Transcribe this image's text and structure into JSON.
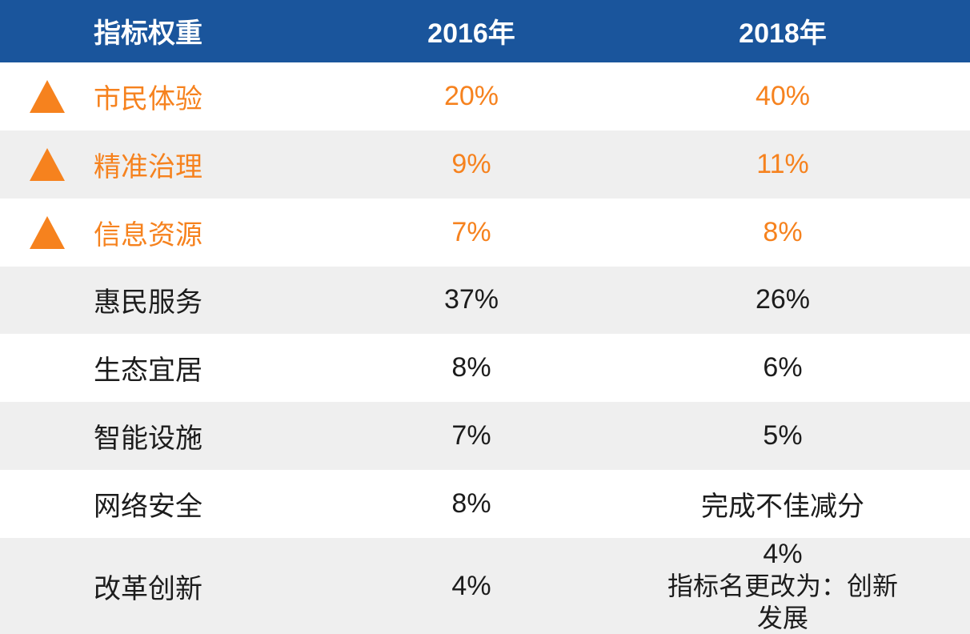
{
  "colors": {
    "header_bg": "#1a559c",
    "accent_orange": "#f6821e",
    "row_alt_bg": "#efefef",
    "row_bg": "#ffffff",
    "text_dark": "#1c1c1c",
    "header_text": "#ffffff"
  },
  "table": {
    "header": {
      "indicator": "指标权重",
      "y2016": "2016年",
      "y2018": "2018年"
    },
    "rows": [
      {
        "label": "市民体验",
        "v2016": "20%",
        "v2018": "40%",
        "trend": "up"
      },
      {
        "label": "精准治理",
        "v2016": "9%",
        "v2018": "11%",
        "trend": "up"
      },
      {
        "label": "信息资源",
        "v2016": "7%",
        "v2018": "8%",
        "trend": "up"
      },
      {
        "label": "惠民服务",
        "v2016": "37%",
        "v2018": "26%",
        "trend": "none"
      },
      {
        "label": "生态宜居",
        "v2016": "8%",
        "v2018": "6%",
        "trend": "none"
      },
      {
        "label": "智能设施",
        "v2016": "7%",
        "v2018": "5%",
        "trend": "none"
      },
      {
        "label": "网络安全",
        "v2016": "8%",
        "v2018": "完成不佳减分",
        "trend": "none"
      },
      {
        "label": "改革创新",
        "v2016": "4%",
        "v2018": "4%",
        "v2018_note": "指标名更改为：创新发展",
        "trend": "none"
      }
    ]
  },
  "chart_data": {
    "type": "table",
    "title": "指标权重",
    "columns": [
      "指标权重",
      "2016年",
      "2018年"
    ],
    "rows": [
      [
        "市民体验",
        "20%",
        "40%"
      ],
      [
        "精准治理",
        "9%",
        "11%"
      ],
      [
        "信息资源",
        "7%",
        "8%"
      ],
      [
        "惠民服务",
        "37%",
        "26%"
      ],
      [
        "生态宜居",
        "8%",
        "6%"
      ],
      [
        "智能设施",
        "7%",
        "5%"
      ],
      [
        "网络安全",
        "8%",
        "完成不佳减分"
      ],
      [
        "改革创新",
        "4%",
        "4% 指标名更改为：创新发展"
      ]
    ],
    "highlighted_rows": [
      "市民体验",
      "精准治理",
      "信息资源"
    ],
    "highlight_marker": "orange-up-triangle",
    "layout": {
      "header_bg": "#1a559c",
      "zebra_striping": true
    }
  }
}
